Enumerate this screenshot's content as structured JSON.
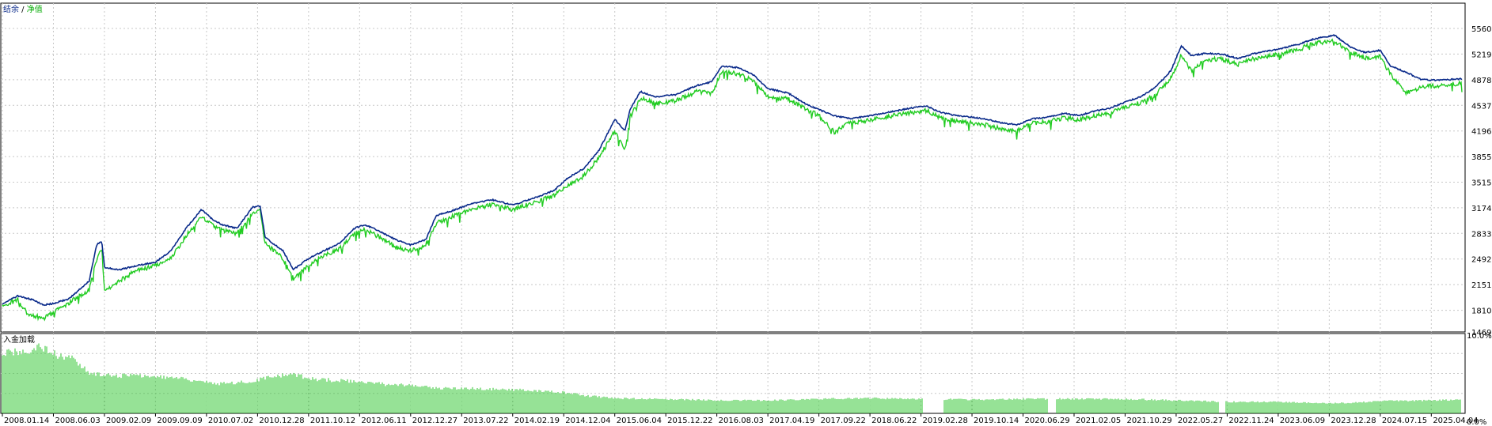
{
  "legend": {
    "balance": "结余",
    "separator": " / ",
    "equity": "净值"
  },
  "subchart_title": "入金加载",
  "colors": {
    "balance": "#0a2a8a",
    "equity": "#22cc22",
    "load": "#2ec42e",
    "grid": "#c8c8c8",
    "axis": "#000000"
  },
  "chart_data": [
    {
      "type": "line",
      "ylim": [
        1469,
        5730
      ],
      "y_ticks": [
        "5560",
        "5219",
        "4878",
        "4537",
        "4196",
        "3855",
        "3515",
        "3174",
        "2833",
        "2492",
        "2151",
        "1810",
        "1469"
      ],
      "x_ticks": [
        "2008.01.14",
        "2008.06.03",
        "2009.02.09",
        "2009.09.09",
        "2010.07.02",
        "2010.12.28",
        "2011.10.12",
        "2012.06.11",
        "2012.12.27",
        "2013.07.22",
        "2014.02.19",
        "2014.12.04",
        "2015.06.04",
        "2015.12.22",
        "2016.08.03",
        "2017.04.19",
        "2017.09.22",
        "2018.06.22",
        "2019.02.28",
        "2019.10.14",
        "2020.06.29",
        "2021.02.05",
        "2021.10.29",
        "2022.05.27",
        "2022.11.24",
        "2023.06.09",
        "2023.12.28",
        "2024.07.15",
        "2025.04.04"
      ],
      "x_range": [
        0,
        28.6
      ],
      "series": [
        {
          "name": "结余",
          "points": [
            [
              0,
              1900
            ],
            [
              0.3,
              2000
            ],
            [
              0.6,
              1950
            ],
            [
              0.8,
              1880
            ],
            [
              1,
              1900
            ],
            [
              1.3,
              1960
            ],
            [
              1.5,
              2080
            ],
            [
              1.7,
              2200
            ],
            [
              1.85,
              2690
            ],
            [
              1.95,
              2720
            ],
            [
              2.0,
              2380
            ],
            [
              2.3,
              2350
            ],
            [
              2.6,
              2400
            ],
            [
              3,
              2450
            ],
            [
              3.3,
              2600
            ],
            [
              3.6,
              2900
            ],
            [
              3.9,
              3150
            ],
            [
              4.1,
              3030
            ],
            [
              4.3,
              2950
            ],
            [
              4.6,
              2900
            ],
            [
              4.9,
              3180
            ],
            [
              5.05,
              3200
            ],
            [
              5.15,
              2780
            ],
            [
              5.5,
              2600
            ],
            [
              5.7,
              2350
            ],
            [
              6,
              2500
            ],
            [
              6.3,
              2600
            ],
            [
              6.6,
              2700
            ],
            [
              6.9,
              2900
            ],
            [
              7.1,
              2950
            ],
            [
              7.4,
              2860
            ],
            [
              7.7,
              2750
            ],
            [
              8,
              2680
            ],
            [
              8.3,
              2750
            ],
            [
              8.5,
              3070
            ],
            [
              8.8,
              3130
            ],
            [
              9.2,
              3230
            ],
            [
              9.6,
              3280
            ],
            [
              10,
              3210
            ],
            [
              10.4,
              3300
            ],
            [
              10.8,
              3400
            ],
            [
              11.1,
              3580
            ],
            [
              11.4,
              3700
            ],
            [
              11.7,
              3950
            ],
            [
              12.0,
              4350
            ],
            [
              12.2,
              4200
            ],
            [
              12.3,
              4480
            ],
            [
              12.5,
              4720
            ],
            [
              12.8,
              4650
            ],
            [
              13.2,
              4680
            ],
            [
              13.6,
              4800
            ],
            [
              13.9,
              4850
            ],
            [
              14.1,
              5060
            ],
            [
              14.4,
              5040
            ],
            [
              14.7,
              4950
            ],
            [
              15.0,
              4760
            ],
            [
              15.4,
              4700
            ],
            [
              15.7,
              4570
            ],
            [
              16.0,
              4480
            ],
            [
              16.3,
              4400
            ],
            [
              16.6,
              4360
            ],
            [
              17.0,
              4400
            ],
            [
              17.4,
              4450
            ],
            [
              17.8,
              4500
            ],
            [
              18.1,
              4530
            ],
            [
              18.4,
              4440
            ],
            [
              18.7,
              4400
            ],
            [
              19.0,
              4380
            ],
            [
              19.3,
              4350
            ],
            [
              19.6,
              4300
            ],
            [
              19.9,
              4280
            ],
            [
              20.2,
              4360
            ],
            [
              20.5,
              4380
            ],
            [
              20.8,
              4430
            ],
            [
              21.1,
              4400
            ],
            [
              21.4,
              4460
            ],
            [
              21.7,
              4500
            ],
            [
              22.0,
              4580
            ],
            [
              22.3,
              4650
            ],
            [
              22.6,
              4780
            ],
            [
              22.9,
              5000
            ],
            [
              23.1,
              5330
            ],
            [
              23.3,
              5200
            ],
            [
              23.6,
              5230
            ],
            [
              23.9,
              5220
            ],
            [
              24.2,
              5160
            ],
            [
              24.5,
              5220
            ],
            [
              24.8,
              5260
            ],
            [
              25.1,
              5300
            ],
            [
              25.4,
              5350
            ],
            [
              25.7,
              5420
            ],
            [
              26.1,
              5470
            ],
            [
              26.4,
              5320
            ],
            [
              26.7,
              5240
            ],
            [
              27.0,
              5270
            ],
            [
              27.2,
              5060
            ],
            [
              27.5,
              4980
            ],
            [
              27.8,
              4880
            ],
            [
              28.1,
              4870
            ],
            [
              28.6,
              4890
            ]
          ]
        },
        {
          "name": "净值",
          "points": [
            [
              0,
              1870
            ],
            [
              0.3,
              1950
            ],
            [
              0.5,
              1760
            ],
            [
              0.8,
              1700
            ],
            [
              1,
              1780
            ],
            [
              1.3,
              1900
            ],
            [
              1.5,
              2000
            ],
            [
              1.7,
              2080
            ],
            [
              1.85,
              2500
            ],
            [
              1.95,
              2650
            ],
            [
              2.0,
              2050
            ],
            [
              2.3,
              2200
            ],
            [
              2.6,
              2330
            ],
            [
              3,
              2400
            ],
            [
              3.3,
              2500
            ],
            [
              3.6,
              2800
            ],
            [
              3.9,
              3050
            ],
            [
              4.1,
              2950
            ],
            [
              4.3,
              2880
            ],
            [
              4.6,
              2830
            ],
            [
              4.9,
              3100
            ],
            [
              5.05,
              3150
            ],
            [
              5.15,
              2700
            ],
            [
              5.5,
              2500
            ],
            [
              5.7,
              2230
            ],
            [
              6,
              2400
            ],
            [
              6.3,
              2550
            ],
            [
              6.6,
              2620
            ],
            [
              6.9,
              2820
            ],
            [
              7.1,
              2880
            ],
            [
              7.4,
              2780
            ],
            [
              7.7,
              2650
            ],
            [
              8,
              2600
            ],
            [
              8.3,
              2680
            ],
            [
              8.5,
              2970
            ],
            [
              8.8,
              3050
            ],
            [
              9.2,
              3150
            ],
            [
              9.6,
              3220
            ],
            [
              10,
              3150
            ],
            [
              10.4,
              3240
            ],
            [
              10.8,
              3330
            ],
            [
              11.1,
              3480
            ],
            [
              11.4,
              3600
            ],
            [
              11.7,
              3850
            ],
            [
              12.0,
              4200
            ],
            [
              12.2,
              3950
            ],
            [
              12.3,
              4380
            ],
            [
              12.5,
              4630
            ],
            [
              12.8,
              4560
            ],
            [
              13.2,
              4600
            ],
            [
              13.6,
              4720
            ],
            [
              13.9,
              4700
            ],
            [
              14.1,
              4980
            ],
            [
              14.4,
              4960
            ],
            [
              14.7,
              4870
            ],
            [
              15.0,
              4650
            ],
            [
              15.4,
              4620
            ],
            [
              15.7,
              4500
            ],
            [
              16.0,
              4400
            ],
            [
              16.3,
              4180
            ],
            [
              16.6,
              4300
            ],
            [
              17.0,
              4340
            ],
            [
              17.4,
              4390
            ],
            [
              17.8,
              4440
            ],
            [
              18.1,
              4470
            ],
            [
              18.4,
              4370
            ],
            [
              18.7,
              4330
            ],
            [
              19.0,
              4300
            ],
            [
              19.3,
              4270
            ],
            [
              19.6,
              4220
            ],
            [
              19.9,
              4200
            ],
            [
              20.2,
              4300
            ],
            [
              20.5,
              4320
            ],
            [
              20.8,
              4370
            ],
            [
              21.1,
              4340
            ],
            [
              21.4,
              4400
            ],
            [
              21.7,
              4440
            ],
            [
              22.0,
              4510
            ],
            [
              22.3,
              4570
            ],
            [
              22.6,
              4680
            ],
            [
              22.9,
              4900
            ],
            [
              23.1,
              5200
            ],
            [
              23.3,
              5000
            ],
            [
              23.6,
              5150
            ],
            [
              23.9,
              5150
            ],
            [
              24.2,
              5080
            ],
            [
              24.5,
              5150
            ],
            [
              24.8,
              5190
            ],
            [
              25.1,
              5230
            ],
            [
              25.4,
              5280
            ],
            [
              25.7,
              5360
            ],
            [
              26.1,
              5400
            ],
            [
              26.4,
              5250
            ],
            [
              26.7,
              5170
            ],
            [
              27.0,
              5180
            ],
            [
              27.2,
              4950
            ],
            [
              27.5,
              4700
            ],
            [
              27.8,
              4780
            ],
            [
              28.1,
              4800
            ],
            [
              28.6,
              4830
            ]
          ]
        }
      ]
    },
    {
      "type": "bar",
      "title": "入金加载",
      "ylim": [
        0,
        10
      ],
      "y_ticks": [
        "10.0%",
        "0.0%"
      ],
      "x_range": [
        0,
        28.6
      ],
      "profile": [
        [
          0,
          8.5
        ],
        [
          0.5,
          8.6
        ],
        [
          0.7,
          9.2
        ],
        [
          0.9,
          8.8
        ],
        [
          1.1,
          8.0
        ],
        [
          1.4,
          7.7
        ],
        [
          1.55,
          6.5
        ],
        [
          1.7,
          5.7
        ],
        [
          2.0,
          5.3
        ],
        [
          2.5,
          5.2
        ],
        [
          3.0,
          5.1
        ],
        [
          3.5,
          4.9
        ],
        [
          3.9,
          4.4
        ],
        [
          4.3,
          4.1
        ],
        [
          4.8,
          4.4
        ],
        [
          5.2,
          4.9
        ],
        [
          5.7,
          5.5
        ],
        [
          6.0,
          4.8
        ],
        [
          6.5,
          4.6
        ],
        [
          7.0,
          4.4
        ],
        [
          7.5,
          4.0
        ],
        [
          8.0,
          3.9
        ],
        [
          8.5,
          3.5
        ],
        [
          9.0,
          3.5
        ],
        [
          10.0,
          3.3
        ],
        [
          11.0,
          2.9
        ],
        [
          11.5,
          2.4
        ],
        [
          12.0,
          2.1
        ],
        [
          13.0,
          2.0
        ],
        [
          14.0,
          1.8
        ],
        [
          15.0,
          1.8
        ],
        [
          16.0,
          2.0
        ],
        [
          17.0,
          2.1
        ],
        [
          18.0,
          2.0
        ],
        [
          19.0,
          1.9
        ],
        [
          20.0,
          2.0
        ],
        [
          21.0,
          2.0
        ],
        [
          22.0,
          2.0
        ],
        [
          23.0,
          1.8
        ],
        [
          24.0,
          1.6
        ],
        [
          25.0,
          1.6
        ],
        [
          26.0,
          1.4
        ],
        [
          26.5,
          1.5
        ],
        [
          27.0,
          1.7
        ],
        [
          28.0,
          1.8
        ],
        [
          28.6,
          1.9
        ]
      ],
      "gaps": [
        [
          18.05,
          18.45
        ],
        [
          20.5,
          20.65
        ],
        [
          23.85,
          23.95
        ]
      ]
    }
  ]
}
